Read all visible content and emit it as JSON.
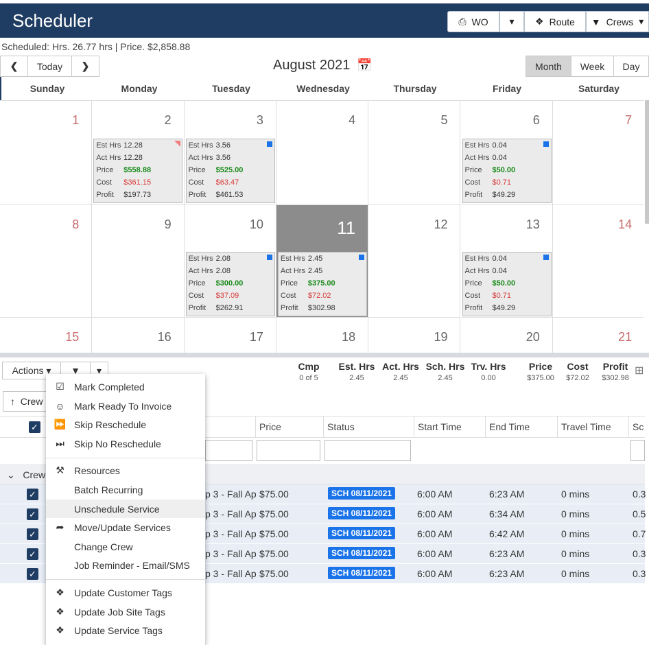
{
  "header": {
    "title": "Scheduler",
    "wo": "WO",
    "route": "Route",
    "crews": "Crews"
  },
  "summary": "Scheduled:  Hrs. 26.77 hrs   |   Price. $2,858.88",
  "nav": {
    "today": "Today",
    "month_title": "August 2021",
    "views": [
      "Month",
      "Week",
      "Day"
    ],
    "active_view": "Month"
  },
  "weekdays": [
    "Sunday",
    "Monday",
    "Tuesday",
    "Wednesday",
    "Thursday",
    "Friday",
    "Saturday"
  ],
  "labels": {
    "est": "Est Hrs",
    "act": "Act Hrs",
    "price": "Price",
    "cost": "Cost",
    "profit": "Profit"
  },
  "weeks": [
    [
      {
        "d": "1"
      },
      {
        "d": "2",
        "card": {
          "est": "12.28",
          "act": "12.28",
          "price": "$558.88",
          "cost": "$361.15",
          "profit": "$197.73",
          "mark": "tri"
        }
      },
      {
        "d": "3",
        "card": {
          "est": "3.56",
          "act": "3.56",
          "price": "$525.00",
          "cost": "$63.47",
          "profit": "$461.53",
          "mark": "sq"
        }
      },
      {
        "d": "4"
      },
      {
        "d": "5"
      },
      {
        "d": "6",
        "card": {
          "est": "0.04",
          "act": "0.04",
          "price": "$50.00",
          "cost": "$0.71",
          "profit": "$49.29",
          "mark": "sq"
        }
      },
      {
        "d": "7"
      }
    ],
    [
      {
        "d": "8"
      },
      {
        "d": "9"
      },
      {
        "d": "10",
        "card": {
          "est": "2.08",
          "act": "2.08",
          "price": "$300.00",
          "cost": "$37.09",
          "profit": "$262.91",
          "mark": "sq"
        }
      },
      {
        "d": "11",
        "today": true,
        "card": {
          "est": "2.45",
          "act": "2.45",
          "price": "$375.00",
          "cost": "$72.02",
          "profit": "$302.98",
          "mark": "sq"
        }
      },
      {
        "d": "12"
      },
      {
        "d": "13",
        "card": {
          "est": "0.04",
          "act": "0.04",
          "price": "$50.00",
          "cost": "$0.71",
          "profit": "$49.29",
          "mark": "sq"
        }
      },
      {
        "d": "14"
      }
    ],
    [
      {
        "d": "15"
      },
      {
        "d": "16"
      },
      {
        "d": "17"
      },
      {
        "d": "18"
      },
      {
        "d": "19"
      },
      {
        "d": "20"
      },
      {
        "d": "21"
      }
    ]
  ],
  "toolbar": {
    "actions": "Actions",
    "crew_sort": "Crew"
  },
  "stats": [
    {
      "h": "Cmp",
      "s": "0 of 5"
    },
    {
      "h": "Est. Hrs",
      "s": "2.45"
    },
    {
      "h": "Act. Hrs",
      "s": "2.45"
    },
    {
      "h": "Sch. Hrs",
      "s": "2.45"
    },
    {
      "h": "Trv. Hrs",
      "s": "0.00"
    },
    {
      "h": "Price",
      "s": "$375.00"
    },
    {
      "h": "Cost",
      "s": "$72.02"
    },
    {
      "h": "Profit",
      "s": "$302.98"
    }
  ],
  "table": {
    "columns": [
      "Price",
      "Status",
      "Start Time",
      "End Time",
      "Travel Time",
      "Sc"
    ],
    "group": "Crew:",
    "rows": [
      {
        "svc": "p 3 - Fall Ap",
        "price": "$75.00",
        "status": "SCH 08/11/2021",
        "start": "6:00 AM",
        "end": "6:23 AM",
        "travel": "0 mins",
        "sc": "0.3"
      },
      {
        "svc": "p 3 - Fall Ap",
        "price": "$75.00",
        "status": "SCH 08/11/2021",
        "start": "6:00 AM",
        "end": "6:34 AM",
        "travel": "0 mins",
        "sc": "0.5"
      },
      {
        "svc": "p 3 - Fall Ap",
        "price": "$75.00",
        "status": "SCH 08/11/2021",
        "start": "6:00 AM",
        "end": "6:42 AM",
        "travel": "0 mins",
        "sc": "0.7"
      },
      {
        "svc": "p 3 - Fall Ap",
        "price": "$75.00",
        "status": "SCH 08/11/2021",
        "start": "6:00 AM",
        "end": "6:23 AM",
        "travel": "0 mins",
        "sc": "0.3"
      },
      {
        "svc": "p 3 - Fall Ap",
        "price": "$75.00",
        "status": "SCH 08/11/2021",
        "start": "6:00 AM",
        "end": "6:23 AM",
        "travel": "0 mins",
        "sc": "0.3"
      }
    ]
  },
  "menu": [
    {
      "label": "Mark Completed",
      "icon": "check-square-icon"
    },
    {
      "label": "Mark Ready To Invoice",
      "icon": "money-hand-icon"
    },
    {
      "label": "Skip Reschedule",
      "icon": "fast-forward-icon"
    },
    {
      "label": "Skip No Reschedule",
      "icon": "skip-end-icon"
    },
    {
      "label": "Resources",
      "icon": "wrench-icon"
    },
    {
      "label": "Batch Recurring",
      "icon": ""
    },
    {
      "label": "Unschedule Service",
      "icon": ""
    },
    {
      "label": "Move/Update Services",
      "icon": "share-arrow-icon"
    },
    {
      "label": "Change Crew",
      "icon": ""
    },
    {
      "label": "Job Reminder - Email/SMS",
      "icon": ""
    },
    {
      "label": "Update Customer Tags",
      "icon": "tags-icon"
    },
    {
      "label": "Update Job Site Tags",
      "icon": "tags-icon"
    },
    {
      "label": "Update Service Tags",
      "icon": "tags-icon"
    }
  ],
  "colors": {
    "header": "#1f3d63",
    "badge": "#1a73e8",
    "price": "#1a8a1a",
    "cost": "#d93b3b"
  }
}
